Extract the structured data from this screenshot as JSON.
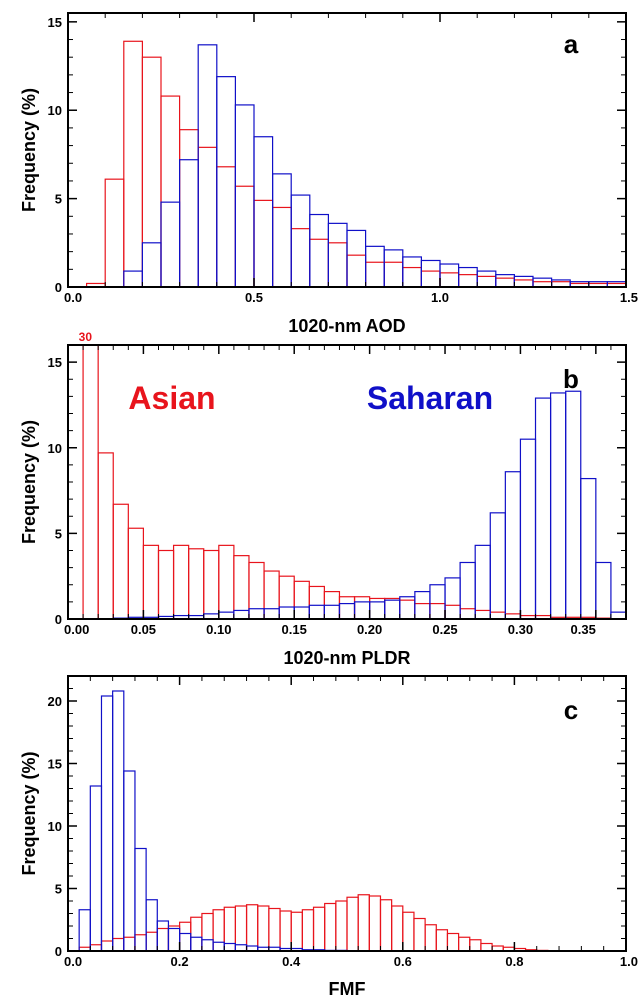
{
  "colors": {
    "asian": "#e8141c",
    "saharan": "#1010c8",
    "axis": "#000000"
  },
  "panels": [
    {
      "id": "a",
      "panel_label": "a",
      "xlabel": "1020-nm AOD",
      "ylabel": "Frequency (%)",
      "xlim": [
        0,
        1.5
      ],
      "ylim": [
        0,
        15.5
      ],
      "xticks": [
        "0.0",
        "0.5",
        "1.0",
        "1.5"
      ],
      "xtick_values": [
        0,
        0.5,
        1.0,
        1.5
      ],
      "yticks": [
        "0",
        "5",
        "10",
        "15"
      ],
      "ytick_values": [
        0,
        5,
        10,
        15
      ],
      "legend": [],
      "overflow_label": ""
    },
    {
      "id": "b",
      "panel_label": "b",
      "xlabel": "1020-nm PLDR",
      "ylabel": "Frequency (%)",
      "xlim": [
        0,
        0.37
      ],
      "ylim": [
        0,
        16
      ],
      "xticks": [
        "0.00",
        "0.05",
        "0.10",
        "0.15",
        "0.20",
        "0.25",
        "0.30",
        "0.35"
      ],
      "xtick_values": [
        0,
        0.05,
        0.1,
        0.15,
        0.2,
        0.25,
        0.3,
        0.35
      ],
      "yticks": [
        "0",
        "5",
        "10",
        "15"
      ],
      "ytick_values": [
        0,
        5,
        10,
        15
      ],
      "legend": [
        {
          "label": "Asian",
          "series": "asian"
        },
        {
          "label": "Saharan",
          "series": "saharan"
        }
      ],
      "overflow_label": "30"
    },
    {
      "id": "c",
      "panel_label": "c",
      "xlabel": "FMF",
      "ylabel": "Frequency (%)",
      "xlim": [
        0,
        1.0
      ],
      "ylim": [
        0,
        22
      ],
      "xticks": [
        "0.0",
        "0.2",
        "0.4",
        "0.6",
        "0.8",
        "1.0"
      ],
      "xtick_values": [
        0,
        0.2,
        0.4,
        0.6,
        0.8,
        1.0
      ],
      "yticks": [
        "0",
        "5",
        "10",
        "15",
        "20"
      ],
      "ytick_values": [
        0,
        5,
        10,
        15,
        20
      ],
      "legend": [],
      "overflow_label": ""
    }
  ],
  "chart_data": [
    {
      "type": "bar",
      "panel": "a",
      "histogram": true,
      "xlabel": "1020-nm AOD",
      "ylabel": "Frequency (%)",
      "xlim": [
        0,
        1.5
      ],
      "ylim": [
        0,
        15.5
      ],
      "series": [
        {
          "name": "Asian",
          "color": "#e8141c",
          "bin_start": 0.05,
          "bin_width": 0.05,
          "values": [
            0.2,
            6.1,
            13.9,
            13.0,
            10.8,
            8.9,
            7.9,
            6.8,
            5.7,
            4.9,
            4.5,
            3.3,
            2.7,
            2.5,
            1.8,
            1.4,
            1.4,
            1.1,
            0.9,
            0.8,
            0.7,
            0.6,
            0.5,
            0.4,
            0.3,
            0.3,
            0.2,
            0.2,
            0.2
          ]
        },
        {
          "name": "Saharan",
          "color": "#1010c8",
          "bin_start": 0.15,
          "bin_width": 0.05,
          "values": [
            0.9,
            2.5,
            4.8,
            7.2,
            13.7,
            11.9,
            10.3,
            8.5,
            6.4,
            5.2,
            4.1,
            3.6,
            3.2,
            2.3,
            2.1,
            1.7,
            1.5,
            1.3,
            1.1,
            0.9,
            0.7,
            0.6,
            0.5,
            0.4,
            0.3,
            0.3,
            0.3
          ]
        }
      ]
    },
    {
      "type": "bar",
      "panel": "b",
      "histogram": true,
      "xlabel": "1020-nm PLDR",
      "ylabel": "Frequency (%)",
      "xlim": [
        0,
        0.37
      ],
      "ylim": [
        0,
        16
      ],
      "series": [
        {
          "name": "Asian",
          "color": "#e8141c",
          "bin_start": 0.0,
          "bin_width": 0.01,
          "values": [
            0,
            30,
            9.7,
            6.7,
            5.3,
            4.3,
            4.0,
            4.3,
            4.1,
            4.0,
            4.3,
            3.7,
            3.3,
            2.8,
            2.5,
            2.2,
            1.9,
            1.6,
            1.3,
            1.3,
            1.2,
            1.2,
            1.1,
            0.9,
            0.9,
            0.8,
            0.6,
            0.5,
            0.4,
            0.3,
            0.2,
            0.2,
            0.1,
            0.1,
            0.1,
            0.05
          ]
        },
        {
          "name": "Saharan",
          "color": "#1010c8",
          "bin_start": 0.0,
          "bin_width": 0.01,
          "values": [
            0,
            0,
            0,
            0.05,
            0.1,
            0.1,
            0.15,
            0.2,
            0.2,
            0.3,
            0.4,
            0.5,
            0.6,
            0.6,
            0.7,
            0.7,
            0.8,
            0.8,
            0.9,
            1.0,
            1.0,
            1.1,
            1.3,
            1.6,
            2.0,
            2.4,
            3.3,
            4.3,
            6.2,
            8.6,
            10.5,
            12.9,
            13.2,
            13.3,
            8.2,
            3.3,
            0.4
          ]
        }
      ]
    },
    {
      "type": "bar",
      "panel": "c",
      "histogram": true,
      "xlabel": "FMF",
      "ylabel": "Frequency (%)",
      "xlim": [
        0,
        1.0
      ],
      "ylim": [
        0,
        22
      ],
      "series": [
        {
          "name": "Asian",
          "color": "#e8141c",
          "bin_start": 0.02,
          "bin_width": 0.02,
          "values": [
            0.3,
            0.5,
            0.8,
            1.0,
            1.1,
            1.3,
            1.5,
            1.8,
            2.0,
            2.3,
            2.7,
            3.0,
            3.3,
            3.5,
            3.6,
            3.7,
            3.6,
            3.4,
            3.2,
            3.1,
            3.3,
            3.5,
            3.8,
            4.0,
            4.3,
            4.5,
            4.4,
            4.1,
            3.6,
            3.1,
            2.6,
            2.1,
            1.7,
            1.4,
            1.1,
            0.9,
            0.6,
            0.4,
            0.3,
            0.2,
            0.1,
            0.05,
            0.03,
            0.02
          ]
        },
        {
          "name": "Saharan",
          "color": "#1010c8",
          "bin_start": 0.02,
          "bin_width": 0.02,
          "values": [
            3.3,
            13.2,
            20.4,
            20.8,
            14.4,
            8.2,
            4.1,
            2.4,
            1.8,
            1.4,
            1.1,
            0.9,
            0.7,
            0.6,
            0.5,
            0.4,
            0.3,
            0.3,
            0.2,
            0.2,
            0.1,
            0.1,
            0.05,
            0.05
          ]
        }
      ]
    }
  ]
}
